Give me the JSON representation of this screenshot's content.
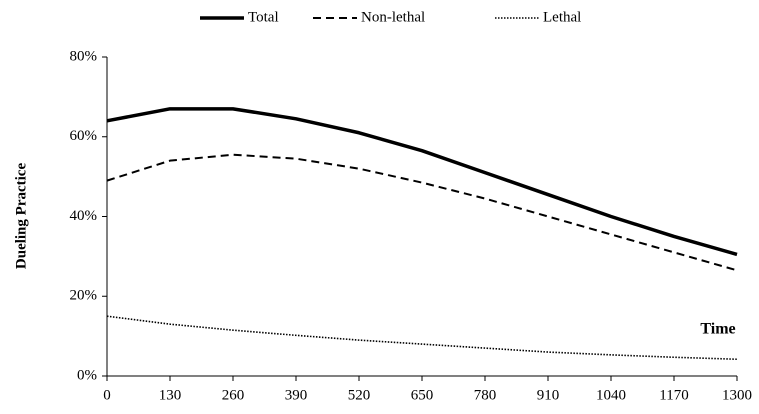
{
  "chart_data": {
    "type": "line",
    "y_label": "Dueling Practice",
    "annotation": "Time",
    "x": [
      0,
      130,
      260,
      390,
      520,
      650,
      780,
      910,
      1040,
      1170,
      1300
    ],
    "xlim": [
      0,
      1300
    ],
    "xticks": [
      0,
      130,
      260,
      390,
      520,
      650,
      780,
      910,
      1040,
      1170,
      1300
    ],
    "ylim": [
      0,
      80
    ],
    "yticks": [
      {
        "value": 0,
        "label": "0%"
      },
      {
        "value": 20,
        "label": "20%"
      },
      {
        "value": 40,
        "label": "40%"
      },
      {
        "value": 60,
        "label": "60%"
      },
      {
        "value": 80,
        "label": "80%"
      }
    ],
    "grid": false,
    "legend": "top",
    "series": [
      {
        "name": "Total",
        "color": "#000000",
        "line_style": "solid",
        "values": [
          64,
          67,
          67,
          64.5,
          61,
          56.5,
          51,
          45.5,
          40,
          35,
          30.5
        ]
      },
      {
        "name": "Non-lethal",
        "color": "#000000",
        "line_style": "dashed",
        "values": [
          49,
          54,
          55.5,
          54.5,
          52,
          48.5,
          44.5,
          40,
          35.5,
          31,
          26.5
        ]
      },
      {
        "name": "Lethal",
        "color": "#000000",
        "line_style": "dotted",
        "values": [
          15,
          13,
          11.5,
          10.2,
          9,
          8,
          7,
          6,
          5.3,
          4.7,
          4.2
        ]
      }
    ]
  }
}
